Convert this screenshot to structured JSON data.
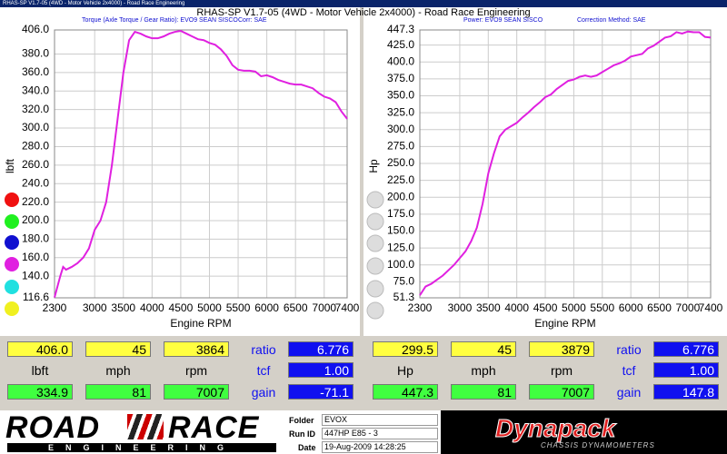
{
  "window_title": "RHAS-SP V1.7-05  (4WD - Motor Vehicle 2x4000) - Road Race Engineering",
  "header_title": "RHAS-SP V1.7-05  (4WD - Motor Vehicle 2x4000) - Road Race Engineering",
  "chart_data": [
    {
      "type": "line",
      "subtitle": "Torque (Axle Torque / Gear Ratio): EVO9 SEAN SISCO",
      "correction": "Corr: SAE",
      "x_label": "Engine RPM",
      "y_label": "lbft",
      "x": [
        2300,
        2400,
        2450,
        2500,
        2600,
        2700,
        2800,
        2900,
        3000,
        3100,
        3200,
        3300,
        3400,
        3500,
        3600,
        3700,
        3800,
        3900,
        4000,
        4100,
        4200,
        4300,
        4400,
        4500,
        4600,
        4700,
        4800,
        4900,
        5000,
        5100,
        5200,
        5300,
        5400,
        5500,
        5600,
        5700,
        5800,
        5900,
        6000,
        6100,
        6200,
        6300,
        6400,
        6500,
        6600,
        6700,
        6800,
        6900,
        7000,
        7100,
        7200,
        7300,
        7400
      ],
      "series": [
        {
          "color": "#e020e0",
          "values": [
            117,
            140,
            150,
            147,
            150,
            154,
            160,
            170,
            190,
            200,
            220,
            260,
            310,
            360,
            395,
            404,
            402,
            399,
            397,
            397,
            399,
            402,
            404,
            405,
            402,
            399,
            396,
            395,
            392,
            390,
            385,
            378,
            368,
            363,
            362,
            362,
            361,
            356,
            357,
            355,
            352,
            350,
            348,
            347,
            347,
            345,
            343,
            338,
            334,
            332,
            328,
            318,
            310
          ]
        }
      ],
      "xlim": [
        2300,
        7400
      ],
      "ylim": [
        116.6,
        406.0
      ],
      "xticks": [
        2300,
        3000,
        3500,
        4000,
        4500,
        5000,
        5500,
        6000,
        6500,
        7000,
        7400
      ],
      "yticks": [
        {
          "value": 406.0,
          "label": "406.0"
        },
        {
          "value": 380,
          "label": "380.0"
        },
        {
          "value": 360,
          "label": "360.0"
        },
        {
          "value": 340,
          "label": "340.0"
        },
        {
          "value": 320,
          "label": "320.0"
        },
        {
          "value": 300,
          "label": "300.0"
        },
        {
          "value": 280,
          "label": "280.0"
        },
        {
          "value": 260,
          "label": "260.0"
        },
        {
          "value": 240,
          "label": "240.0"
        },
        {
          "value": 220,
          "label": "220.0"
        },
        {
          "value": 200,
          "label": "200.0"
        },
        {
          "value": 180,
          "label": "180.0"
        },
        {
          "value": 160,
          "label": "160.0"
        },
        {
          "value": 140,
          "label": "140.0"
        },
        {
          "value": 116.6,
          "label": "116.6"
        }
      ],
      "grid": true
    },
    {
      "type": "line",
      "subtitle": "Power: EVO9 SEAN SISCO",
      "correction": "Correction Method: SAE",
      "x_label": "Engine RPM",
      "y_label": "Hp",
      "x": [
        2300,
        2400,
        2500,
        2600,
        2700,
        2800,
        2900,
        3000,
        3100,
        3200,
        3300,
        3400,
        3500,
        3600,
        3700,
        3800,
        3900,
        4000,
        4100,
        4200,
        4300,
        4400,
        4500,
        4600,
        4700,
        4800,
        4900,
        5000,
        5100,
        5200,
        5300,
        5400,
        5500,
        5600,
        5700,
        5800,
        5900,
        6000,
        6100,
        6200,
        6300,
        6400,
        6500,
        6600,
        6700,
        6800,
        6900,
        7000,
        7100,
        7200,
        7300,
        7400
      ],
      "series": [
        {
          "color": "#e020e0",
          "values": [
            55,
            68,
            72,
            78,
            84,
            92,
            100,
            110,
            120,
            135,
            155,
            190,
            235,
            265,
            290,
            300,
            305,
            310,
            318,
            325,
            333,
            340,
            348,
            352,
            360,
            366,
            372,
            374,
            378,
            380,
            378,
            380,
            385,
            390,
            395,
            398,
            402,
            408,
            410,
            412,
            420,
            424,
            430,
            436,
            438,
            444,
            442,
            445,
            444,
            444,
            437,
            436
          ]
        }
      ],
      "xlim": [
        2300,
        7400
      ],
      "ylim": [
        51.3,
        447.3
      ],
      "xticks": [
        2300,
        3000,
        3500,
        4000,
        4500,
        5000,
        5500,
        6000,
        6500,
        7000,
        7400
      ],
      "yticks": [
        {
          "value": 447.3,
          "label": "447.3"
        },
        {
          "value": 425,
          "label": "425.0"
        },
        {
          "value": 400,
          "label": "400.0"
        },
        {
          "value": 375,
          "label": "375.0"
        },
        {
          "value": 350,
          "label": "350.0"
        },
        {
          "value": 325,
          "label": "325.0"
        },
        {
          "value": 300,
          "label": "300.0"
        },
        {
          "value": 275,
          "label": "275.0"
        },
        {
          "value": 250,
          "label": "250.0"
        },
        {
          "value": 225,
          "label": "225.0"
        },
        {
          "value": 200,
          "label": "200.0"
        },
        {
          "value": 175,
          "label": "175.0"
        },
        {
          "value": 150,
          "label": "150.0"
        },
        {
          "value": 125,
          "label": "125.0"
        },
        {
          "value": 100,
          "label": "100.0"
        },
        {
          "value": 75,
          "label": "75.0"
        },
        {
          "value": 51.3,
          "label": "51.3"
        }
      ],
      "grid": true
    }
  ],
  "readouts": [
    {
      "top": [
        "406.0",
        "45",
        "3864"
      ],
      "ratio_label": "ratio",
      "ratio": "6.776",
      "units": [
        "lbft",
        "mph",
        "rpm"
      ],
      "tcf_label": "tcf",
      "tcf": "1.00",
      "bottom": [
        "334.9",
        "81",
        "7007"
      ],
      "gain_label": "gain",
      "gain": "-71.1"
    },
    {
      "top": [
        "299.5",
        "45",
        "3879"
      ],
      "ratio_label": "ratio",
      "ratio": "6.776",
      "units": [
        "Hp",
        "mph",
        "rpm"
      ],
      "tcf_label": "tcf",
      "tcf": "1.00",
      "bottom": [
        "447.3",
        "81",
        "7007"
      ],
      "gain_label": "gain",
      "gain": "147.8"
    }
  ],
  "footer": {
    "logo_road": "ROAD",
    "logo_race": "RACE",
    "logo_sub": "ENGINEERING",
    "folder_label": "Folder",
    "folder": "EVOX",
    "run_label": "Run ID",
    "run": "447HP E85 - 3",
    "date_label": "Date",
    "date": "19-Aug-2009  14:28:25",
    "brand": "Dynapack",
    "brand_sub": "CHASSIS DYNAMOMETERS"
  }
}
